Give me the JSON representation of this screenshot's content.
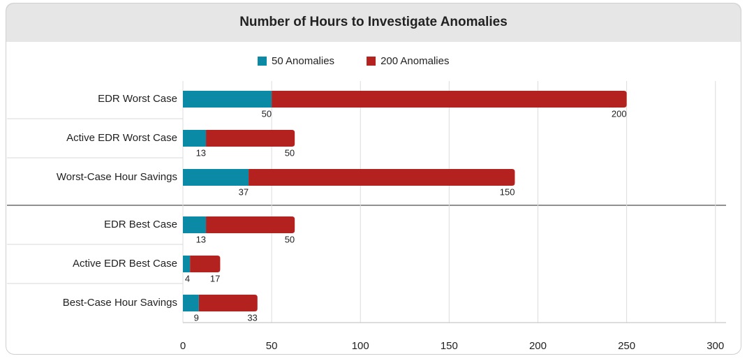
{
  "chart_data": {
    "type": "stacked-bar-horizontal",
    "title": "Number of Hours to Investigate Anomalies",
    "categories": [
      "EDR Worst Case",
      "Active EDR Worst Case",
      "Worst-Case Hour Savings",
      "EDR Best Case",
      "Active EDR Best Case",
      "Best-Case Hour Savings"
    ],
    "series": [
      {
        "name": "50 Anomalies",
        "color": "#0b8aa6",
        "values": [
          50,
          13,
          37,
          13,
          4,
          9
        ]
      },
      {
        "name": "200 Anomalies",
        "color": "#b3221f",
        "values": [
          200,
          50,
          150,
          50,
          17,
          33
        ]
      }
    ],
    "xlim": [
      0,
      306
    ],
    "xticks": [
      0,
      50,
      100,
      150,
      200,
      250,
      300
    ],
    "grid": true,
    "legend": "top"
  }
}
